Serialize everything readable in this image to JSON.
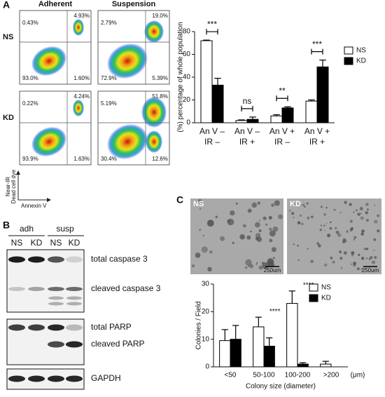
{
  "panels": [
    "A",
    "B",
    "C"
  ],
  "flow_cytometry": {
    "columns": [
      "Adherent",
      "Suspension"
    ],
    "rows": [
      "NS",
      "KD"
    ],
    "plots": [
      [
        {
          "ul": "0.43%",
          "ur": "4.93%",
          "ll": "93.0%",
          "lr": "1.60%"
        },
        {
          "ul": "2.79%",
          "ur": "19.0%",
          "ll": "72.9%",
          "lr": "5.39%"
        }
      ],
      [
        {
          "ul": "0.22%",
          "ur": "4.24%",
          "ll": "93.9%",
          "lr": "1.63%"
        },
        {
          "ul": "5.19%",
          "ur": "51.8%",
          "ll": "30.4%",
          "lr": "12.6%"
        }
      ]
    ],
    "y_label": [
      "Near-IR",
      "Dead cell dye"
    ],
    "x_label": "Annexin V"
  },
  "western_blot": {
    "groups": [
      "adh",
      "susp"
    ],
    "lanes": [
      "NS",
      "KD",
      "NS",
      "KD"
    ],
    "bands": [
      "total caspase 3",
      "cleaved caspase 3",
      "total PARP",
      "cleaved PARP",
      "GAPDH"
    ]
  },
  "microscopy": {
    "images": [
      "NS",
      "KD"
    ],
    "scale_bar": "250um"
  },
  "chart_data": [
    {
      "type": "bar",
      "y_label": "(%) percentage of whole population",
      "categories": [
        [
          "An V –",
          "IR –"
        ],
        [
          "An V –",
          "IR +"
        ],
        [
          "An V +",
          "IR –"
        ],
        [
          "An V +",
          "IR +"
        ]
      ],
      "series": [
        {
          "name": "NS",
          "color": "#ffffff",
          "values": [
            72,
            2,
            6,
            19
          ],
          "errors": [
            0.5,
            0.5,
            1,
            1
          ]
        },
        {
          "name": "KD",
          "color": "#000000",
          "values": [
            33,
            3,
            13,
            49
          ],
          "errors": [
            6,
            2,
            1,
            6
          ]
        }
      ],
      "significance": [
        "***",
        "ns",
        "**",
        "***"
      ],
      "ylim": [
        0,
        80
      ],
      "yticks": [
        0,
        20,
        40,
        60,
        80
      ],
      "grid": false,
      "legend": "upper right"
    },
    {
      "type": "bar",
      "y_label": "Colonies / Field",
      "x_label": "Colony size (diameter)",
      "x_unit": "(μm)",
      "categories": [
        "<50",
        "50-100",
        "100-200",
        ">200"
      ],
      "series": [
        {
          "name": "NS",
          "color": "#ffffff",
          "values": [
            9.5,
            14.5,
            23,
            1
          ],
          "errors": [
            4,
            3.5,
            4.5,
            1
          ]
        },
        {
          "name": "KD",
          "color": "#000000",
          "values": [
            10,
            7.5,
            1,
            0
          ],
          "errors": [
            5,
            3,
            0.5,
            null
          ]
        }
      ],
      "significance": [
        null,
        "****",
        "****",
        null
      ],
      "ylim": [
        0,
        30
      ],
      "yticks": [
        0,
        10,
        20,
        30
      ],
      "grid": false,
      "legend": "upper right"
    }
  ]
}
